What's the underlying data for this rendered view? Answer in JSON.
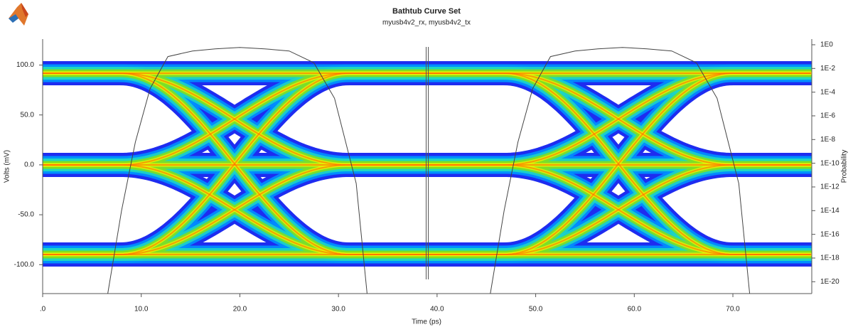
{
  "chart_data": {
    "type": "line",
    "title": "Bathtub Curve Set",
    "subtitle": "myusb4v2_rx, myusb4v2_tx",
    "xlabel": "Time (ps)",
    "ylabel": "Volts (mV)",
    "y2label": "Probability",
    "xlim": [
      0,
      78
    ],
    "ylim": [
      -129,
      126
    ],
    "y2lim": [
      1e-21,
      3
    ],
    "y2_log": true,
    "xticks": [
      {
        "value": 0,
        "label": ".0"
      },
      {
        "value": 10,
        "label": "10.0"
      },
      {
        "value": 20,
        "label": "20.0"
      },
      {
        "value": 30,
        "label": "30.0"
      },
      {
        "value": 40,
        "label": "40.0"
      },
      {
        "value": 50,
        "label": "50.0"
      },
      {
        "value": 60,
        "label": "60.0"
      },
      {
        "value": 70,
        "label": "70.0"
      }
    ],
    "yticks": [
      {
        "value": 100,
        "label": "100.0"
      },
      {
        "value": 50,
        "label": "50.0"
      },
      {
        "value": 0,
        "label": "0.0"
      },
      {
        "value": -50,
        "label": "-50.0"
      },
      {
        "value": -100,
        "label": "-100.0"
      }
    ],
    "y2ticks": [
      {
        "value": 1,
        "label": "1E0"
      },
      {
        "value": 0.01,
        "label": "1E-2"
      },
      {
        "value": 0.0001,
        "label": "1E-4"
      },
      {
        "value": 1e-06,
        "label": "1E-6"
      },
      {
        "value": 1e-08,
        "label": "1E-8"
      },
      {
        "value": 1e-10,
        "label": "1E-10"
      },
      {
        "value": 1e-12,
        "label": "1E-12"
      },
      {
        "value": 1e-14,
        "label": "1E-14"
      },
      {
        "value": 1e-16,
        "label": "1E-16"
      },
      {
        "value": 1e-18,
        "label": "1E-18"
      },
      {
        "value": 1e-20,
        "label": "1E-20"
      }
    ],
    "cursor_x": 39.0,
    "series": [
      {
        "color": "#444444",
        "axis": "y2",
        "x": [
          6.6,
          8.0,
          9.4,
          10.9,
          12.7,
          15.2,
          17.5,
          20.0,
          22.5,
          25.0,
          27.5,
          29.6,
          31.8,
          32.9
        ],
        "values": [
          1e-21,
          1e-14,
          6e-09,
          0.0002,
          0.1,
          0.3,
          0.45,
          0.6,
          0.45,
          0.3,
          0.03,
          3e-05,
          2e-12,
          1e-21
        ]
      },
      {
        "color": "#444444",
        "axis": "y2",
        "x": [
          45.4,
          46.8,
          48.2,
          49.7,
          51.5,
          54.0,
          56.3,
          58.8,
          61.3,
          63.8,
          66.3,
          68.4,
          70.6,
          71.7
        ],
        "values": [
          1e-21,
          1e-14,
          6e-09,
          0.0002,
          0.1,
          0.3,
          0.45,
          0.6,
          0.45,
          0.3,
          0.03,
          3e-05,
          2e-12,
          1e-21
        ]
      }
    ]
  }
}
